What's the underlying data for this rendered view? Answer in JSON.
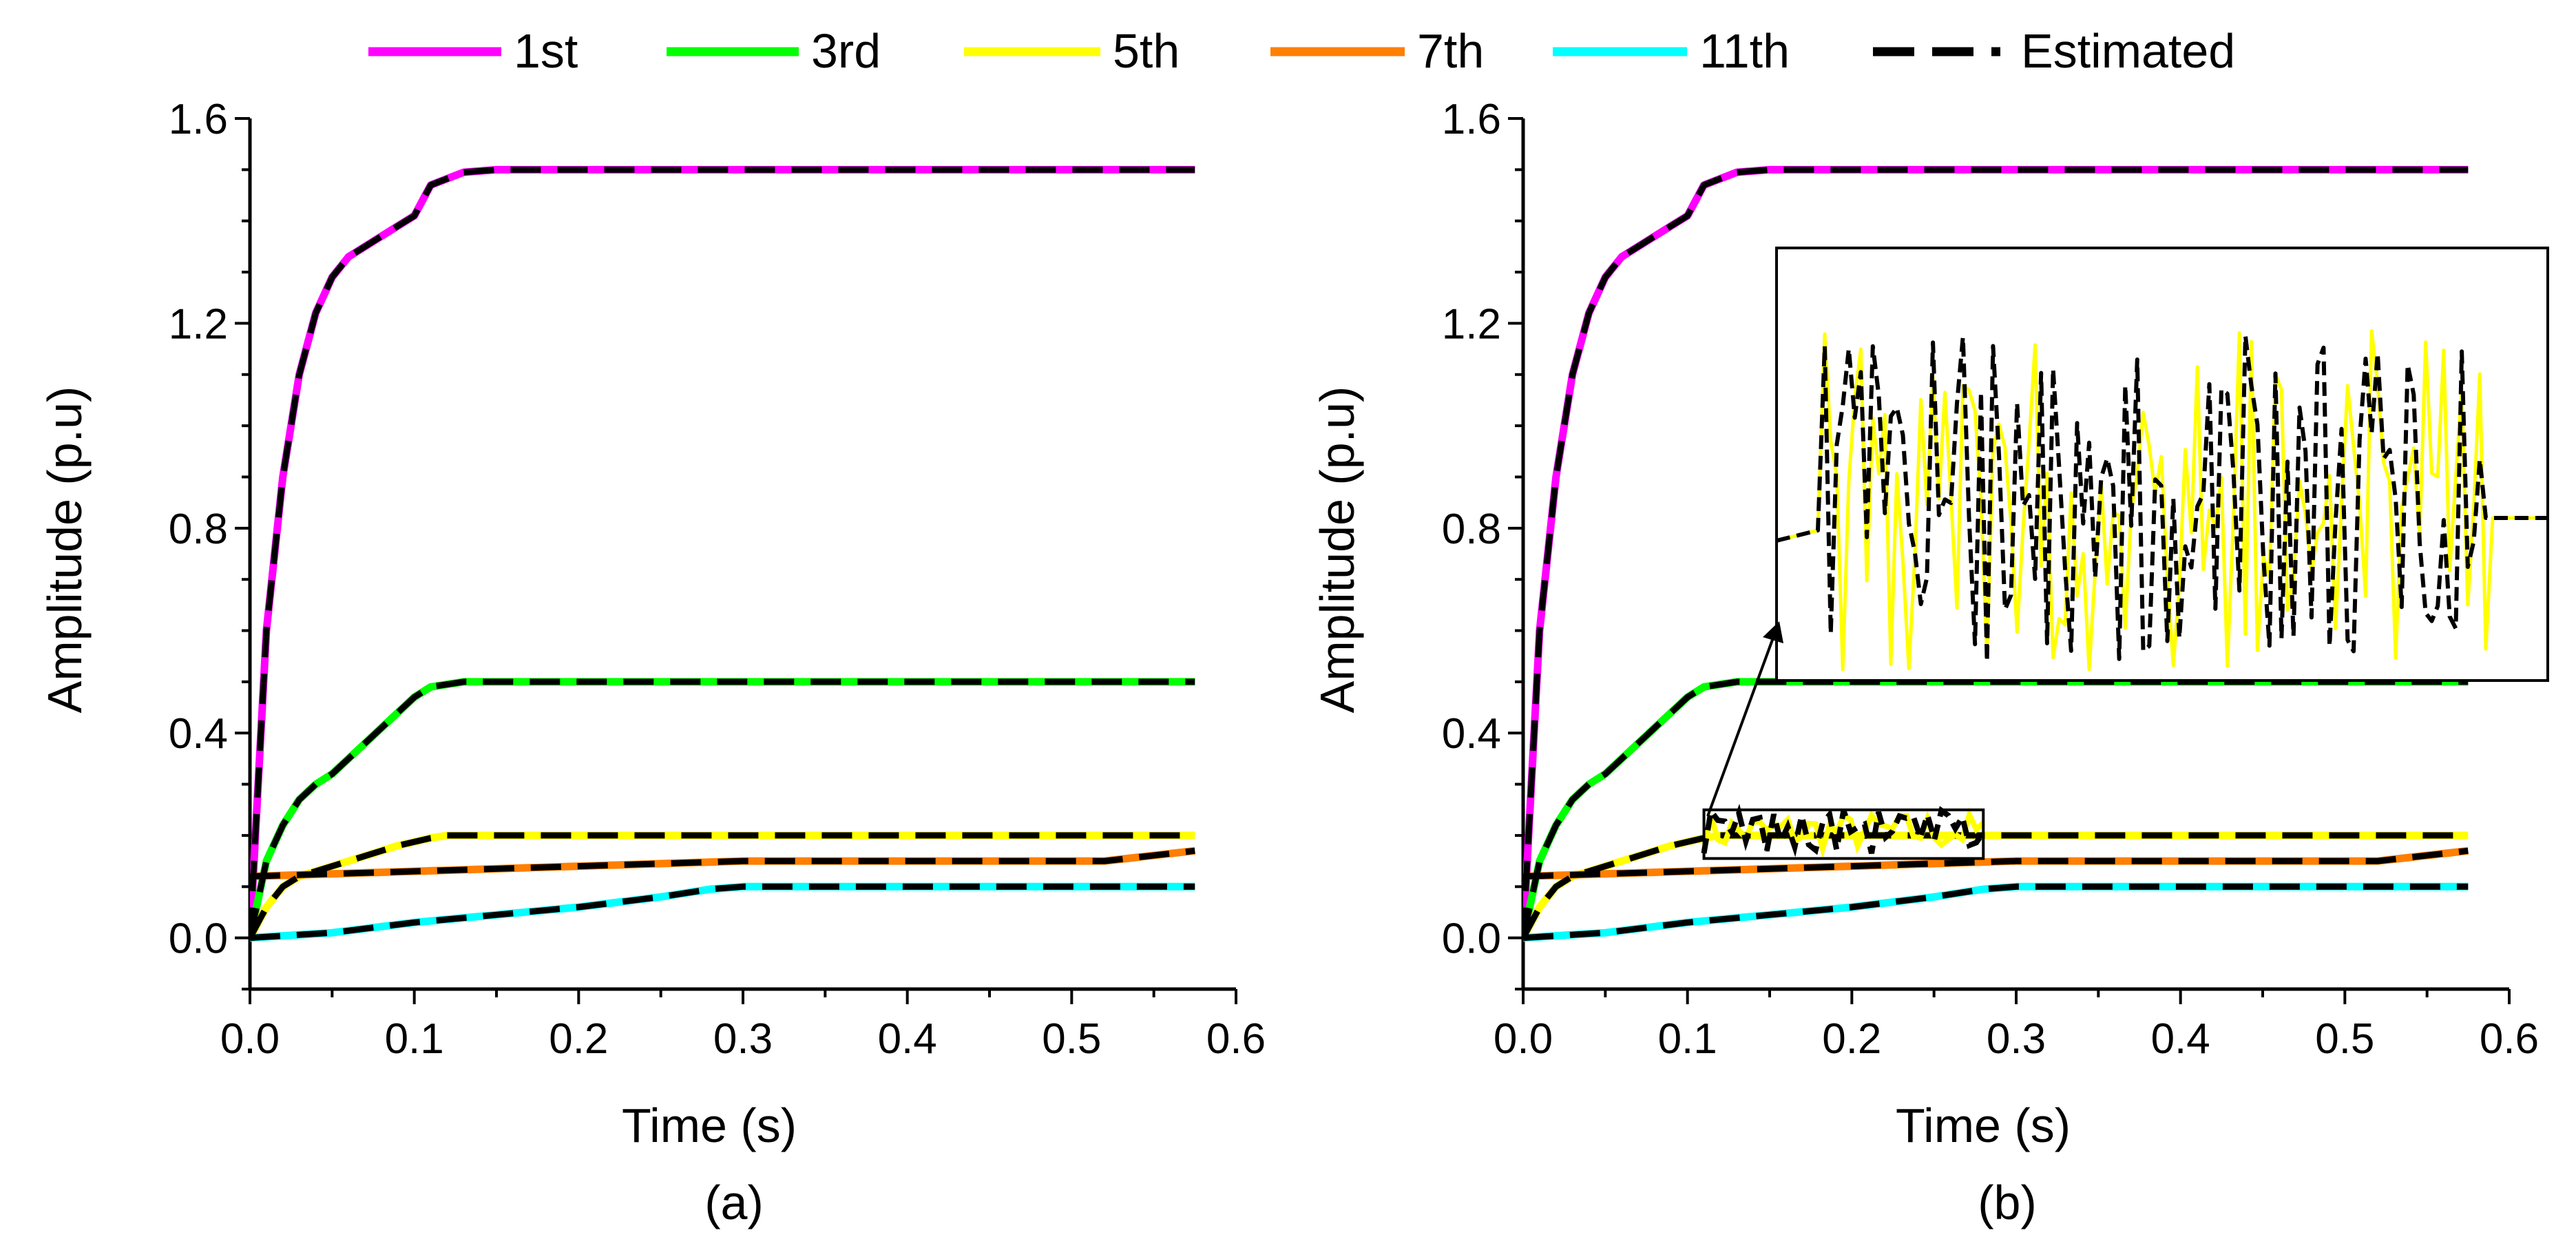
{
  "chart_data": {
    "type": "line",
    "legend": {
      "placement": "top",
      "entries": [
        {
          "name": "1st",
          "color": "#ff00ff",
          "style": "solid"
        },
        {
          "name": "3rd",
          "color": "#00ff00",
          "style": "solid"
        },
        {
          "name": "5th",
          "color": "#ffff00",
          "style": "solid"
        },
        {
          "name": "7th",
          "color": "#ff7f00",
          "style": "solid"
        },
        {
          "name": "11th",
          "color": "#00ffff",
          "style": "solid"
        },
        {
          "name": "Estimated",
          "color": "#000000",
          "style": "dashed"
        }
      ]
    },
    "panels": [
      {
        "id": "a",
        "subtitle": "(a)",
        "xlabel": "Time (s)",
        "ylabel": "Amplitude (p.u)",
        "xlim": [
          0,
          0.6
        ],
        "ylim": [
          -0.1,
          1.6
        ],
        "xticks": [
          "0.0",
          "0.1",
          "0.2",
          "0.3",
          "0.4",
          "0.5",
          "0.6"
        ],
        "yticks": [
          "0.0",
          "0.4",
          "0.8",
          "1.2",
          "1.6"
        ],
        "series": [
          {
            "name": "1st",
            "x": [
              0,
              0.005,
              0.01,
              0.02,
              0.03,
              0.04,
              0.05,
              0.06,
              0.07,
              0.08,
              0.09,
              0.1,
              0.105,
              0.11,
              0.13,
              0.15,
              0.2,
              0.3,
              0.4,
              0.5,
              0.575
            ],
            "y": [
              0,
              0.3,
              0.6,
              0.9,
              1.1,
              1.22,
              1.29,
              1.33,
              1.35,
              1.37,
              1.39,
              1.41,
              1.44,
              1.47,
              1.495,
              1.5,
              1.5,
              1.5,
              1.5,
              1.5,
              1.5
            ]
          },
          {
            "name": "3rd",
            "x": [
              0,
              0.01,
              0.02,
              0.03,
              0.04,
              0.05,
              0.06,
              0.07,
              0.08,
              0.09,
              0.1,
              0.11,
              0.13,
              0.15,
              0.2,
              0.3,
              0.4,
              0.5,
              0.575
            ],
            "y": [
              0,
              0.15,
              0.22,
              0.27,
              0.3,
              0.32,
              0.35,
              0.38,
              0.41,
              0.44,
              0.47,
              0.49,
              0.5,
              0.5,
              0.5,
              0.5,
              0.5,
              0.5,
              0.5
            ]
          },
          {
            "name": "5th",
            "x": [
              0,
              0.01,
              0.02,
              0.03,
              0.05,
              0.07,
              0.09,
              0.11,
              0.12,
              0.15,
              0.2,
              0.3,
              0.4,
              0.5,
              0.575
            ],
            "y": [
              0,
              0.06,
              0.1,
              0.12,
              0.14,
              0.16,
              0.18,
              0.195,
              0.2,
              0.2,
              0.2,
              0.2,
              0.2,
              0.2,
              0.2
            ]
          },
          {
            "name": "7th",
            "x": [
              0,
              0.1,
              0.2,
              0.3,
              0.4,
              0.5,
              0.52,
              0.575
            ],
            "y": [
              0.12,
              0.13,
              0.14,
              0.15,
              0.15,
              0.15,
              0.15,
              0.17
            ]
          },
          {
            "name": "11th",
            "x": [
              0,
              0.05,
              0.1,
              0.15,
              0.2,
              0.25,
              0.28,
              0.3,
              0.4,
              0.5,
              0.575
            ],
            "y": [
              0,
              0.01,
              0.03,
              0.045,
              0.06,
              0.08,
              0.095,
              0.1,
              0.1,
              0.1,
              0.1
            ]
          }
        ]
      },
      {
        "id": "b",
        "subtitle": "(b)",
        "xlabel": "Time (s)",
        "ylabel": "Amplitude (p.u)",
        "xlim": [
          0,
          0.6
        ],
        "ylim": [
          -0.1,
          1.6
        ],
        "xticks": [
          "0.0",
          "0.1",
          "0.2",
          "0.3",
          "0.4",
          "0.5",
          "0.6"
        ],
        "yticks": [
          "0.0",
          "0.4",
          "0.8",
          "1.2",
          "1.6"
        ],
        "inset": {
          "description": "zoom of noisy 5th harmonic and its estimate",
          "source_region": {
            "x": [
              0.11,
              0.28
            ],
            "y": [
              0.155,
              0.25
            ]
          }
        }
      }
    ]
  }
}
